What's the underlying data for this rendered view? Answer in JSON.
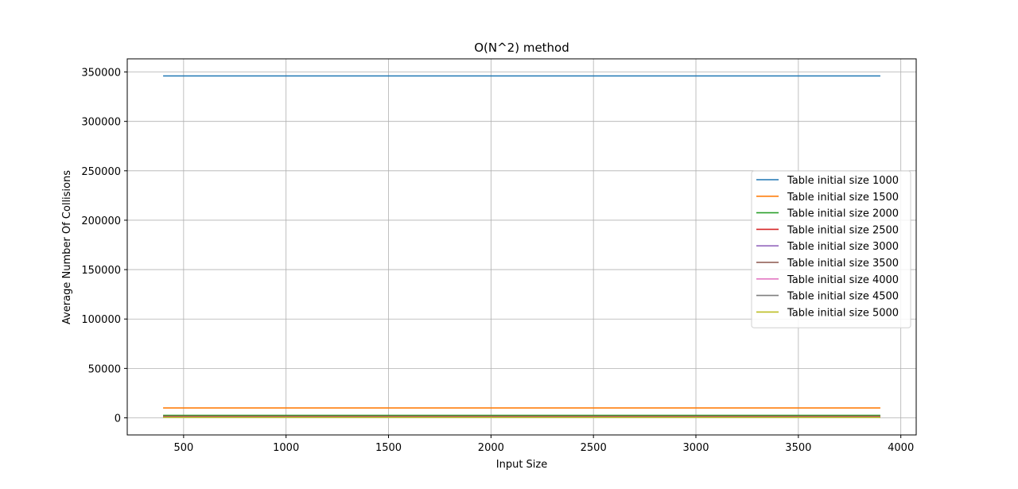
{
  "chart_data": {
    "type": "line",
    "title": "O(N^2) method",
    "xlabel": "Input Size",
    "ylabel": "Average Number Of Collisions",
    "xlim": [
      225,
      4075
    ],
    "ylim": [
      -17300,
      363300
    ],
    "xticks": [
      500,
      1000,
      1500,
      2000,
      2500,
      3000,
      3500,
      4000
    ],
    "yticks": [
      0,
      50000,
      100000,
      150000,
      200000,
      250000,
      300000,
      350000
    ],
    "grid": true,
    "legend_position": "center-right",
    "x": [
      400,
      3900
    ],
    "series": [
      {
        "name": "Table initial size 1000",
        "color": "#1f77b4",
        "values": [
          346000,
          346000
        ]
      },
      {
        "name": "Table initial size 1500",
        "color": "#ff7f0e",
        "values": [
          10000,
          10000
        ]
      },
      {
        "name": "Table initial size 2000",
        "color": "#2ca02c",
        "values": [
          2500,
          2500
        ]
      },
      {
        "name": "Table initial size 2500",
        "color": "#d62728",
        "values": [
          1500,
          1500
        ]
      },
      {
        "name": "Table initial size 3000",
        "color": "#9467bd",
        "values": [
          1100,
          1100
        ]
      },
      {
        "name": "Table initial size 3500",
        "color": "#8c564b",
        "values": [
          900,
          900
        ]
      },
      {
        "name": "Table initial size 4000",
        "color": "#e377c2",
        "values": [
          700,
          700
        ]
      },
      {
        "name": "Table initial size 4500",
        "color": "#7f7f7f",
        "values": [
          600,
          600
        ]
      },
      {
        "name": "Table initial size 5000",
        "color": "#bcbd22",
        "values": [
          500,
          500
        ]
      }
    ]
  }
}
